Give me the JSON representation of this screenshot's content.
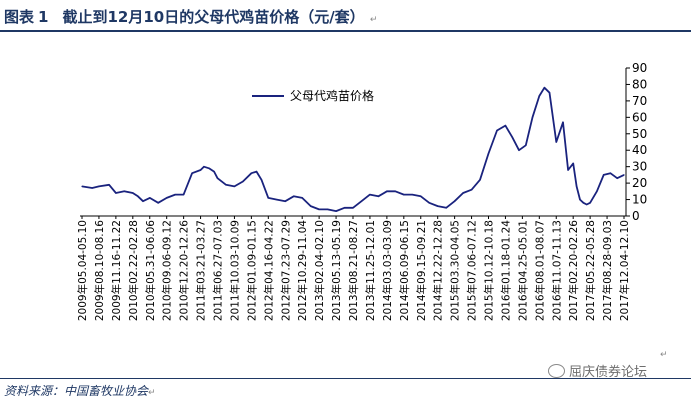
{
  "header": {
    "figure_label": "图表",
    "figure_number": "1",
    "title": "截止到12月10日的父母代鸡苗价格（元/套）"
  },
  "footer": {
    "source": "资料来源：中国畜牧业协会",
    "watermark": "屈庆债券论坛"
  },
  "chart_data": {
    "type": "line",
    "title": "截止到12月10日的父母代鸡苗价格（元/套）",
    "xlabel": "",
    "ylabel": "",
    "ylim": [
      0,
      90
    ],
    "yticks": [
      0,
      10,
      20,
      30,
      40,
      50,
      60,
      70,
      80,
      90
    ],
    "y_axis_position": "right",
    "grid": false,
    "legend_position": "top-left",
    "line_color": "#1a237e",
    "x_tick_labels": [
      "2009年05.04-05.10",
      "2009年08.10-08.16",
      "2009年11.16-11.22",
      "2010年02.22-02.28",
      "2010年05.31-06.06",
      "2010年09.06-09.12",
      "2010年12.20-12.26",
      "2011年03.21-03.27",
      "2011年06.27-07.03",
      "2011年10.03-10.09",
      "2012年01.09-01.15",
      "2012年04.16-04.22",
      "2012年07.23-07.29",
      "2012年10.29-11.04",
      "2013年02.04-02.10",
      "2013年05.13-05.19",
      "2013年08.21-08.27",
      "2013年11.25-12.01",
      "2014年03.03-03.09",
      "2014年06.09-06.15",
      "2014年09.15-09.21",
      "2014年12.22-12.28",
      "2015年03.30-04.05",
      "2015年07.06-07.12",
      "2015年10.12-10.18",
      "2016年01.18-01.24",
      "2016年04.25-05.01",
      "2016年08.01-08.07",
      "2016年11.07-11.13",
      "2017年02.20-02.26",
      "2017年05.22-05.28",
      "2017年08.28-09.03",
      "2017年12.04-12.10"
    ],
    "series": [
      {
        "name": "父母代鸡苗价格",
        "x": [
          0,
          0.6,
          1,
          1.6,
          2,
          2.5,
          3,
          3.3,
          3.6,
          4,
          4.5,
          5,
          5.5,
          6,
          6.5,
          7,
          7.2,
          7.5,
          7.8,
          8,
          8.5,
          9,
          9.5,
          10,
          10.3,
          10.6,
          11,
          11.5,
          12,
          12.5,
          13,
          13.5,
          14,
          14.5,
          15,
          15.5,
          16,
          16.5,
          17,
          17.5,
          18,
          18.5,
          19,
          19.5,
          20,
          20.5,
          21,
          21.5,
          22,
          22.5,
          23,
          23.5,
          24,
          24.5,
          25,
          25.4,
          25.8,
          26.2,
          26.6,
          27,
          27.3,
          27.6,
          28,
          28.4,
          28.7,
          29,
          29.2,
          29.4,
          29.6,
          29.8,
          30,
          30.4,
          30.8,
          31.2,
          31.6,
          32
        ],
        "values": [
          18,
          17,
          18,
          19,
          14,
          15,
          14,
          12,
          9,
          11,
          8,
          11,
          13,
          13,
          26,
          28,
          30,
          29,
          27,
          23,
          19,
          18,
          21,
          26,
          27,
          22,
          11,
          10,
          9,
          12,
          11,
          6,
          4,
          4,
          3,
          5,
          5,
          9,
          13,
          12,
          15,
          15,
          13,
          13,
          12,
          8,
          6,
          5,
          9,
          14,
          16,
          22,
          38,
          52,
          55,
          48,
          40,
          43,
          60,
          73,
          78,
          75,
          45,
          57,
          28,
          32,
          18,
          10,
          8,
          7,
          8,
          15,
          25,
          26,
          23,
          25
        ]
      }
    ]
  }
}
